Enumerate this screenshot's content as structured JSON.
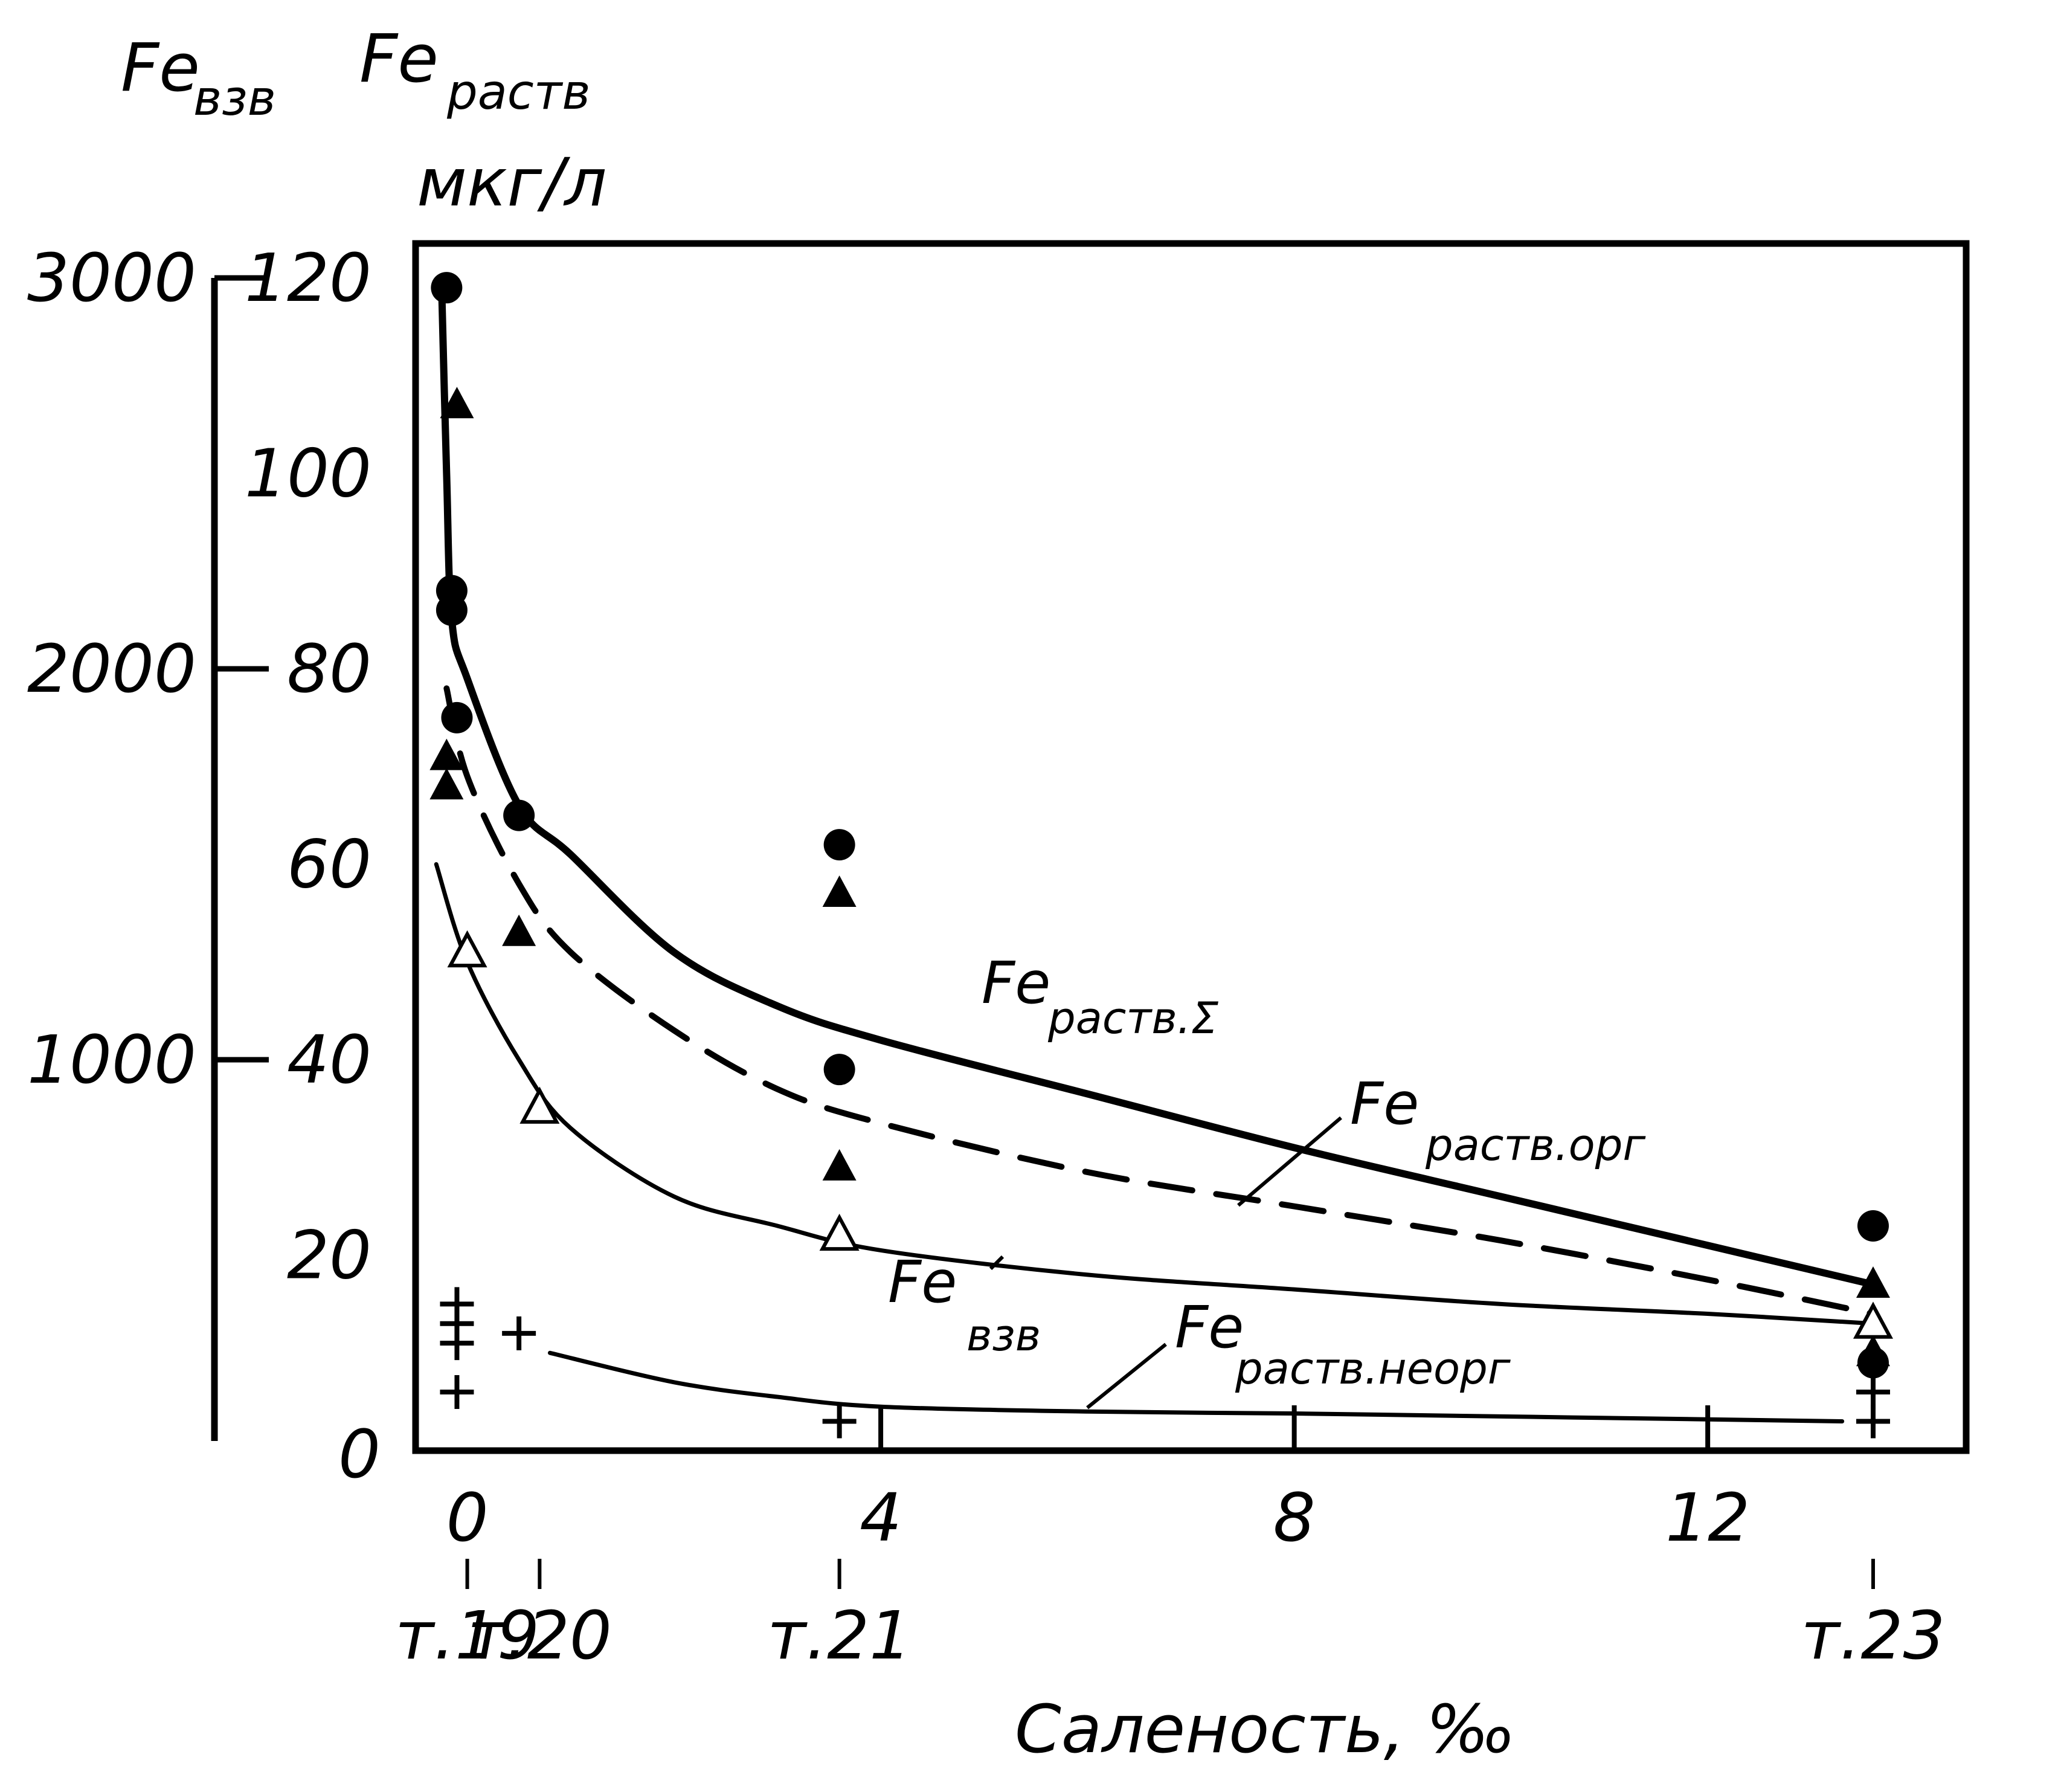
{
  "chart_data": {
    "type": "scatter",
    "x_axis": {
      "label": "Саленость, ‰",
      "range": [
        -0.5,
        14.5
      ],
      "ticks": [
        0,
        4,
        8,
        12
      ],
      "tick_labels": [
        "0",
        "4",
        "8",
        "12"
      ],
      "stations": [
        {
          "x": 0,
          "label": "т.19"
        },
        {
          "x": 0.7,
          "label": "т.20"
        },
        {
          "x": 3.6,
          "label": "т.21"
        },
        {
          "x": 13.6,
          "label": "т.23"
        }
      ]
    },
    "y_axis_left": {
      "label_main": "Fe",
      "label_sub": "взв",
      "range": [
        0,
        3000
      ],
      "ticks": [
        0,
        1000,
        2000,
        3000
      ],
      "tick_labels": [
        "0",
        "1000",
        "2000",
        "3000"
      ]
    },
    "y_axis_inner": {
      "label_main": "Fe",
      "label_sub": "раств",
      "units": "мкг/л",
      "range": [
        0,
        120
      ],
      "ticks": [
        20,
        40,
        60,
        80,
        100,
        120
      ],
      "tick_labels": [
        "20",
        "40",
        "60",
        "80",
        "100",
        "120"
      ]
    },
    "zero_label": "0",
    "series": [
      {
        "name_main": "Fe",
        "name_sub": "раств.Σ",
        "marker": "filled-circle",
        "style": "thick-solid",
        "points": [
          [
            -0.2,
            119
          ],
          [
            -0.15,
            88
          ],
          [
            -0.15,
            86
          ],
          [
            -0.1,
            75
          ],
          [
            0.5,
            65
          ],
          [
            3.6,
            62
          ],
          [
            3.6,
            39
          ],
          [
            13.6,
            23
          ],
          [
            13.6,
            9
          ]
        ],
        "curve": [
          [
            -0.25,
            120
          ],
          [
            -0.2,
            100
          ],
          [
            -0.15,
            85
          ],
          [
            0,
            79
          ],
          [
            0.5,
            66
          ],
          [
            1,
            61
          ],
          [
            2,
            51
          ],
          [
            3,
            45.5
          ],
          [
            4,
            42
          ],
          [
            6,
            36.5
          ],
          [
            8,
            31
          ],
          [
            10,
            26
          ],
          [
            12,
            21
          ],
          [
            13.6,
            17
          ]
        ]
      },
      {
        "name_main": "Fe",
        "name_sub": "раств.орг",
        "marker": "filled-triangle",
        "style": "dashed",
        "points": [
          [
            -0.1,
            107
          ],
          [
            -0.2,
            71
          ],
          [
            -0.2,
            68
          ],
          [
            0.5,
            53
          ],
          [
            3.6,
            57
          ],
          [
            3.6,
            29
          ],
          [
            13.6,
            17
          ],
          [
            13.6,
            10
          ]
        ],
        "curve": [
          [
            -0.2,
            78
          ],
          [
            0,
            69
          ],
          [
            0.5,
            58
          ],
          [
            1,
            51
          ],
          [
            2,
            43
          ],
          [
            3,
            37
          ],
          [
            4,
            33.5
          ],
          [
            6,
            28.5
          ],
          [
            8,
            25
          ],
          [
            10,
            21.5
          ],
          [
            12,
            17.5
          ],
          [
            13.6,
            14
          ]
        ]
      },
      {
        "name_main": "Fe",
        "name_sub": "взв",
        "marker": "open-triangle",
        "style": "thin-solid",
        "points": [
          [
            0,
            51
          ],
          [
            0.7,
            35
          ],
          [
            3.6,
            22
          ],
          [
            13.6,
            13
          ]
        ],
        "curve": [
          [
            -0.3,
            60
          ],
          [
            0,
            50
          ],
          [
            0.5,
            40
          ],
          [
            1,
            33
          ],
          [
            2,
            26
          ],
          [
            3,
            23
          ],
          [
            4,
            20.5
          ],
          [
            6,
            18
          ],
          [
            8,
            16.5
          ],
          [
            10,
            15
          ],
          [
            12,
            14
          ],
          [
            13.6,
            13
          ]
        ]
      },
      {
        "name_main": "Fe",
        "name_sub": "раств.неорг",
        "marker": "plus",
        "style": "thin-solid",
        "points": [
          [
            -0.1,
            15
          ],
          [
            -0.1,
            13
          ],
          [
            -0.1,
            11
          ],
          [
            0.5,
            12
          ],
          [
            -0.1,
            6
          ],
          [
            3.6,
            3
          ],
          [
            13.6,
            6
          ],
          [
            13.6,
            3
          ]
        ],
        "curve": [
          [
            0.8,
            10
          ],
          [
            2,
            7
          ],
          [
            3,
            5.5
          ],
          [
            4,
            4.5
          ],
          [
            6,
            4
          ],
          [
            8,
            3.8
          ],
          [
            10,
            3.5
          ],
          [
            12,
            3.2
          ],
          [
            13.3,
            3
          ]
        ]
      }
    ]
  }
}
